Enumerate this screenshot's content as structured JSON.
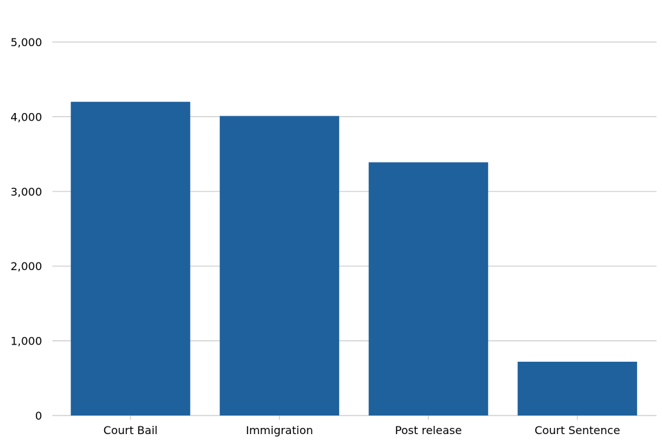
{
  "chart_data": {
    "type": "bar",
    "title": "",
    "xlabel": "",
    "ylabel": "",
    "categories": [
      "Court Bail",
      "Immigration",
      "Post release",
      "Court Sentence"
    ],
    "values": [
      4200,
      4010,
      3390,
      720
    ],
    "ylim": [
      0,
      5000
    ],
    "yticks": [
      0,
      1000,
      2000,
      3000,
      4000,
      5000
    ],
    "ytick_labels": [
      "0",
      "1,000",
      "2,000",
      "3,000",
      "4,000",
      "5,000"
    ],
    "grid": true,
    "legend": "none",
    "colors": {
      "bar": "#1f619c",
      "grid": "#c8c8c8",
      "axis": "#c8c8c8"
    }
  }
}
